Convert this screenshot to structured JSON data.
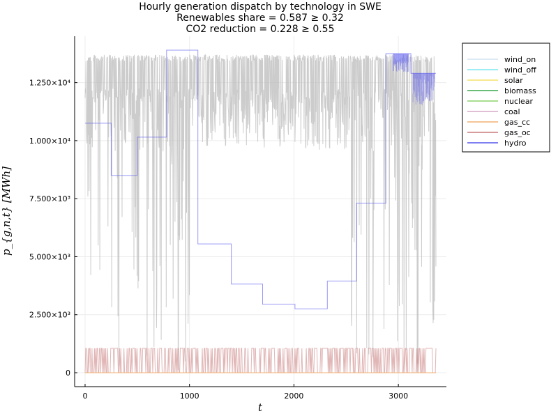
{
  "chart_data": {
    "type": "line",
    "title": [
      "Hourly generation dispatch by technology in SWE",
      "Renewables share = 0.587 ≥ 0.32",
      "CO2 reduction = 0.228 ≥ 0.55"
    ],
    "xlabel": "t",
    "ylabel": "p_{g,n,t} [MWh]",
    "xlim": [
      -100,
      3460
    ],
    "ylim": [
      -600,
      14500
    ],
    "x_ticks": [
      0,
      1000,
      2000,
      3000
    ],
    "x_tick_labels": [
      "0",
      "1000",
      "2000",
      "3000"
    ],
    "y_ticks": [
      0,
      2500,
      5000,
      7500,
      10000,
      12500
    ],
    "y_tick_labels": [
      "0",
      "2.500×10³",
      "5.000×10³",
      "7.500×10³",
      "1.000×10⁴",
      "1.250×10⁴"
    ],
    "grid": true,
    "legend_position": "top-right outside",
    "hours": 3360,
    "series": [
      {
        "name": "wind_on",
        "color": "#d0e4f2",
        "pattern": "zero"
      },
      {
        "name": "wind_off",
        "color": "#7fe5f0",
        "pattern": "zero"
      },
      {
        "name": "solar",
        "color": "#f5e06a",
        "pattern": "zero"
      },
      {
        "name": "biomass",
        "color": "#3aa84a",
        "pattern": "zero"
      },
      {
        "name": "nuclear",
        "color": "#8bd36b",
        "pattern": "zero"
      },
      {
        "name": "coal",
        "color": "#d9a7c8",
        "pattern": "zero"
      },
      {
        "name": "gas_cc",
        "color": "#f0b070",
        "pattern": "zero"
      },
      {
        "name": "gas_oc",
        "color": "#c87a7a",
        "pattern": "spikes",
        "max": 1050
      },
      {
        "name": "hydro",
        "color": "#5555ee",
        "pattern": "steps",
        "steps": [
          {
            "from": 0,
            "to": 250,
            "value": 10750
          },
          {
            "from": 250,
            "to": 500,
            "value": 8500
          },
          {
            "from": 500,
            "to": 780,
            "value": 10150
          },
          {
            "from": 780,
            "to": 1080,
            "value": 13900
          },
          {
            "from": 1080,
            "to": 1400,
            "value": 5550
          },
          {
            "from": 1400,
            "to": 1700,
            "value": 3820
          },
          {
            "from": 1700,
            "to": 2010,
            "value": 2950
          },
          {
            "from": 2010,
            "to": 2320,
            "value": 2750
          },
          {
            "from": 2320,
            "to": 2600,
            "value": 3950
          },
          {
            "from": 2600,
            "to": 2880,
            "value": 7300
          },
          {
            "from": 2880,
            "to": 3120,
            "value": 13750
          },
          {
            "from": 3120,
            "to": 3360,
            "value": 12900
          }
        ]
      },
      {
        "name": "",
        "color": "#bbbbbb",
        "pattern": "noise",
        "max": 13700
      }
    ]
  }
}
